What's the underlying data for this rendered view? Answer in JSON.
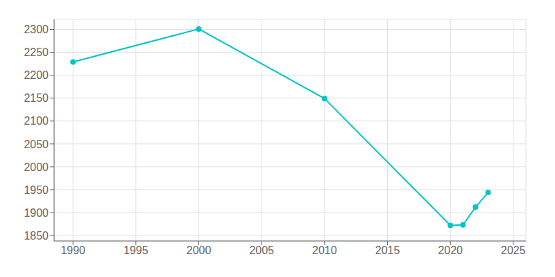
{
  "chart_data": {
    "type": "line",
    "x": [
      1990,
      2000,
      2010,
      2020,
      2021,
      2022,
      2023
    ],
    "values": [
      2229,
      2301,
      2149,
      1872,
      1873,
      1912,
      1944
    ],
    "color": "#00C5C8",
    "marker": "circle",
    "xlim": [
      1988.5,
      2026
    ],
    "ylim": [
      1838,
      2322
    ],
    "xticks": [
      1990,
      1995,
      2000,
      2005,
      2010,
      2015,
      2020,
      2025
    ],
    "yticks": [
      1850,
      1900,
      1950,
      2000,
      2050,
      2100,
      2150,
      2200,
      2250,
      2300
    ],
    "grid": true
  }
}
